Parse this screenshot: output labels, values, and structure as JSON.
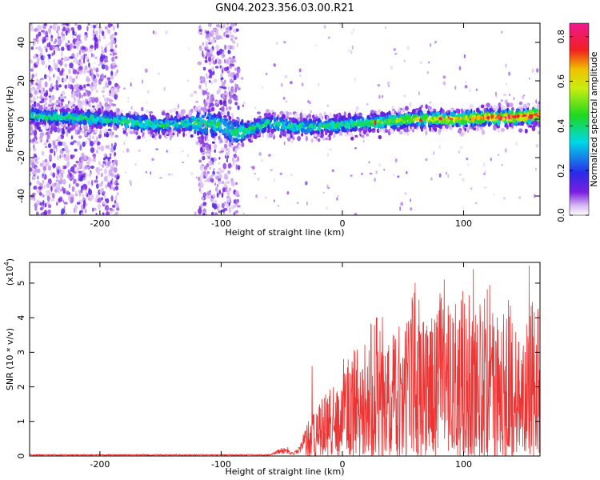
{
  "title": "GN04.2023.356.03.00.R21",
  "colors": {
    "snr_line": "#ee3333",
    "axes": "#000000",
    "background": "#ffffff"
  },
  "chart_data": [
    {
      "type": "heatmap",
      "name": "spectrogram",
      "xlabel": "Height of straight line (km)",
      "ylabel": "Frequency (Hz)",
      "xlim": [
        -258,
        163
      ],
      "ylim": [
        -50,
        50
      ],
      "x_ticks": [
        "-200",
        "-100",
        "0",
        "100"
      ],
      "y_ticks": [
        "-40",
        "-20",
        "0",
        "20",
        "40"
      ],
      "colorbar": {
        "label": "Normalized spectral amplitude",
        "range": [
          0.0,
          0.86
        ],
        "ticks": [
          "0.0",
          "0.2",
          "0.4",
          "0.6",
          "0.8"
        ],
        "colormap": "rainbow (white-violet-blue-cyan-green-yellow-red-magenta)"
      },
      "band_centerline": {
        "x": [
          -258,
          -200,
          -150,
          -118,
          -100,
          -90,
          -80,
          -60,
          -40,
          -20,
          0,
          20,
          40,
          60,
          80,
          100,
          120,
          140,
          163
        ],
        "freq": [
          2,
          0,
          -3,
          -2,
          -3,
          -7,
          -6,
          -2,
          -4,
          -4,
          -3,
          -2,
          -1,
          0,
          0,
          0,
          1,
          1,
          2
        ]
      },
      "noise_bands_x": [
        [
          -258,
          -185
        ],
        [
          -118,
          -85
        ]
      ]
    },
    {
      "type": "line",
      "name": "snr",
      "xlabel": "Height of straight line (km)",
      "ylabel": "SNR (10 * v/v)",
      "y_multiplier": "(x10",
      "y_multiplier_exp": "4",
      "y_multiplier_close": ")",
      "xlim": [
        -258,
        163
      ],
      "ylim": [
        0,
        5.6
      ],
      "x_ticks": [
        "-200",
        "-100",
        "0",
        "100"
      ],
      "y_ticks": [
        "0",
        "1",
        "2",
        "3",
        "4",
        "5"
      ],
      "series": [
        {
          "envelope": {
            "x": [
              -258,
              -60,
              -50,
              -40,
              -35,
              -30,
              -20,
              -10,
              0,
              10,
              20,
              30,
              40,
              50,
              60,
              70,
              80,
              90,
              100,
              110,
              120,
              130,
              140,
              150,
              160,
              163
            ],
            "y_max": [
              0.05,
              0.05,
              0.25,
              0.1,
              0.3,
              0.9,
              1.5,
              2.0,
              2.5,
              3.2,
              3.6,
              4.3,
              3.8,
              4.2,
              5.0,
              4.0,
              4.8,
              4.2,
              5.0,
              4.3,
              5.4,
              4.0,
              4.5,
              3.6,
              5.5,
              3.2
            ]
          },
          "peaks": [
            [
              -45,
              0.25
            ],
            [
              -28,
              1.0
            ],
            [
              -25,
              2.6
            ],
            [
              1,
              2.8
            ],
            [
              60,
              5.0
            ],
            [
              84,
              5.1
            ],
            [
              108,
              5.4
            ],
            [
              137,
              4.5
            ],
            [
              154,
              5.5
            ]
          ]
        }
      ]
    }
  ]
}
